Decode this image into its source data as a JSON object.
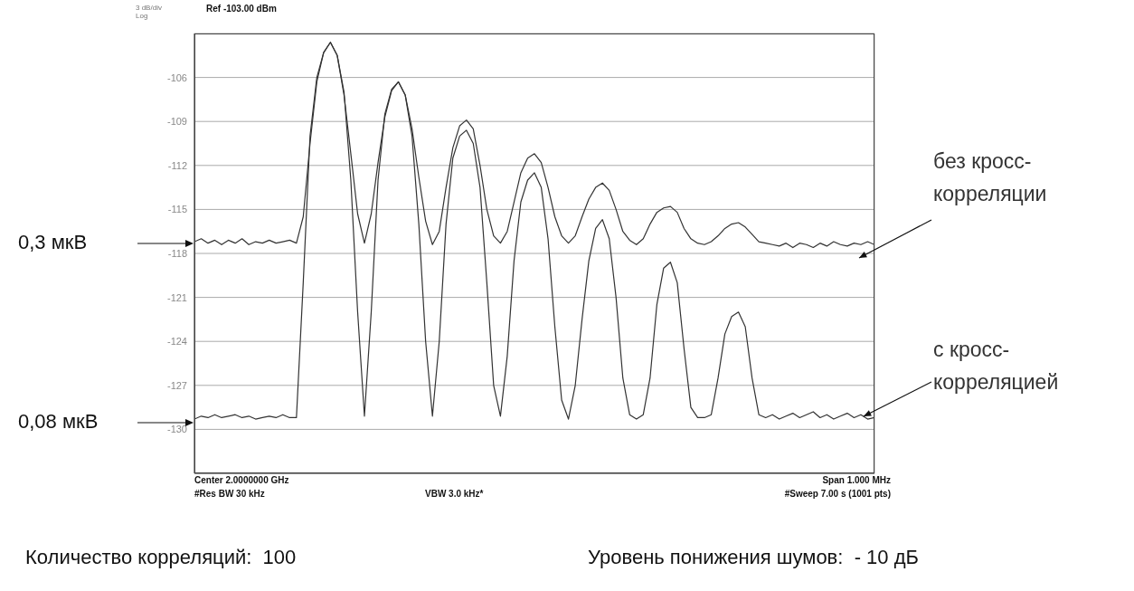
{
  "chart_data": {
    "type": "line",
    "categories": [
      null,
      null,
      null,
      null,
      null,
      null,
      null,
      null,
      null,
      null,
      null,
      null,
      null,
      null,
      null,
      null,
      null,
      null,
      null,
      null,
      null,
      null,
      null,
      null,
      null,
      null,
      null,
      null,
      null,
      null,
      null,
      null,
      null,
      null,
      null,
      null,
      null,
      null,
      null,
      null,
      null,
      null,
      null,
      null,
      null,
      null,
      null,
      null,
      null,
      null,
      null,
      null,
      null,
      null,
      null,
      null,
      null,
      null,
      null,
      null,
      null,
      null,
      null,
      null,
      null,
      null,
      null,
      null,
      null,
      null,
      null,
      null,
      null,
      null,
      null,
      null,
      null,
      null,
      null,
      null,
      null,
      null,
      null,
      null,
      null,
      null,
      null,
      null,
      null,
      null,
      null,
      null,
      null,
      null,
      null,
      null,
      null,
      null,
      null,
      null,
      null
    ],
    "ylim": [
      -133,
      -103
    ],
    "yticks": [
      {
        "value": -103,
        "label": null
      },
      -106,
      -109,
      -112,
      -115,
      -118,
      -121,
      -124,
      -127,
      -130,
      {
        "value": -133,
        "label": null
      }
    ],
    "tick_labels": "y",
    "grid": true,
    "legend": false,
    "marker": "none",
    "line_style": "solid",
    "annotations": [
      "3 dB/div",
      "Log",
      "Ref -103.00 dBm",
      "Center 2.0000000 GHz",
      "#Res BW 30 kHz",
      "VBW 3.0 kHz*",
      "Span 1.000 MHz",
      "#Sweep 7.00 s (1001 pts)",
      "Количество корреляций:  100",
      "Уровень понижения шумов:  - 10 дБ",
      "0,3 мкВ",
      "0,08 мкВ"
    ],
    "series": [
      {
        "name": "без кросс-корреляции",
        "color": "#333333",
        "values": [
          -117.2,
          -117.0,
          -117.3,
          -117.1,
          -117.4,
          -117.1,
          -117.3,
          -117.0,
          -117.4,
          -117.2,
          -117.3,
          -117.1,
          -117.3,
          -117.2,
          -117.1,
          -117.3,
          -115.5,
          -110.5,
          -106.3,
          -104.3,
          -103.6,
          -104.5,
          -107.2,
          -111.2,
          -115.3,
          -117.3,
          -115.3,
          -111.8,
          -108.7,
          -106.9,
          -106.3,
          -107.2,
          -109.5,
          -112.8,
          -115.8,
          -117.4,
          -116.5,
          -113.5,
          -110.8,
          -109.3,
          -108.9,
          -109.5,
          -112,
          -115,
          -116.8,
          -117.3,
          -116.5,
          -114.5,
          -112.5,
          -111.5,
          -111.2,
          -111.8,
          -113.5,
          -115.5,
          -116.8,
          -117.3,
          -116.8,
          -115.5,
          -114.3,
          -113.5,
          -113.2,
          -113.7,
          -115,
          -116.5,
          -117.1,
          -117.4,
          -117.0,
          -116.0,
          -115.2,
          -114.9,
          -114.8,
          -115.2,
          -116.3,
          -117.0,
          -117.3,
          -117.4,
          -117.2,
          -116.8,
          -116.3,
          -116.0,
          -115.9,
          -116.2,
          -116.7,
          -117.2,
          -117.3,
          -117.4,
          -117.5,
          -117.3,
          -117.6,
          -117.3,
          -117.4,
          -117.6,
          -117.3,
          -117.5,
          -117.2,
          -117.4,
          -117.5,
          -117.3,
          -117.4,
          -117.2,
          -117.4
        ]
      },
      {
        "name": "с кросс-корреляцией",
        "color": "#333333",
        "values": [
          -129.3,
          -129.1,
          -129.2,
          -129.0,
          -129.2,
          -129.1,
          -129.0,
          -129.2,
          -129.1,
          -129.3,
          -129.2,
          -129.1,
          -129.2,
          -129.0,
          -129.2,
          -129.2,
          -120,
          -110,
          -106,
          -104.3,
          -103.6,
          -104.5,
          -107,
          -113,
          -122,
          -129.1,
          -122,
          -113,
          -108.5,
          -106.8,
          -106.3,
          -107.2,
          -110,
          -116,
          -124,
          -129.1,
          -124,
          -116,
          -111.5,
          -110,
          -109.6,
          -110.5,
          -113.5,
          -120,
          -127,
          -129.1,
          -125,
          -118.5,
          -114.5,
          -113,
          -112.5,
          -113.5,
          -117,
          -123,
          -128,
          -129.3,
          -127,
          -122.5,
          -118.5,
          -116.3,
          -115.7,
          -117,
          -121,
          -126.5,
          -129,
          -129.3,
          -129.0,
          -126.5,
          -121.5,
          -119,
          -118.6,
          -120,
          -124.5,
          -128.5,
          -129.2,
          -129.2,
          -129.0,
          -126.5,
          -123.5,
          -122.3,
          -122.0,
          -123,
          -126.5,
          -129,
          -129.2,
          -129.0,
          -129.3,
          -129.1,
          -128.9,
          -129.2,
          -129.0,
          -128.8,
          -129.2,
          -129.0,
          -129.3,
          -129.1,
          -128.9,
          -129.2,
          -129.0,
          -129.3,
          -129.2
        ]
      }
    ]
  }
}
